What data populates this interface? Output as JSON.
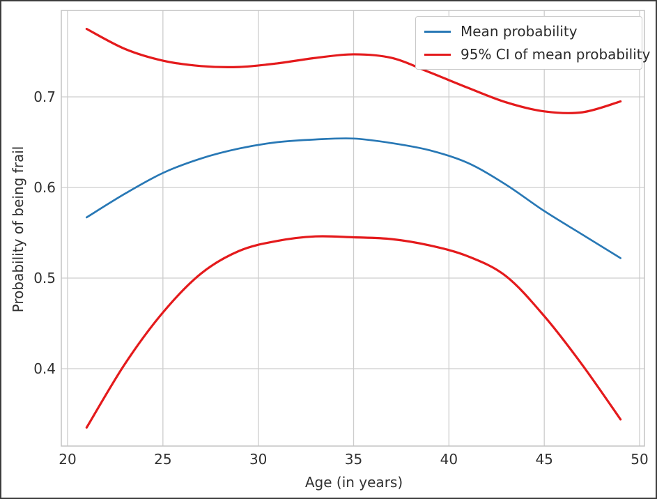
{
  "figure": {
    "background": "#ffffff",
    "border_color": "#3c3c3c",
    "grid_color": "#cdcdcd",
    "spine_color": "#c4c4c4",
    "text_color": "#303030"
  },
  "chart_data": {
    "type": "line",
    "title": "",
    "xlabel": "Age (in years)",
    "ylabel": "Probability of being frail",
    "xlim": [
      19.671,
      50.255
    ],
    "ylim": [
      0.3146,
      0.7954
    ],
    "grid": true,
    "x": [
      21,
      23,
      25,
      27,
      29,
      31,
      33,
      35,
      37,
      39,
      41,
      43,
      45,
      47,
      49
    ],
    "series": [
      {
        "name": "Mean probability",
        "color": "#2878b5",
        "line_width": 2.7,
        "values": [
          0.567,
          0.593,
          0.616,
          0.632,
          0.643,
          0.65,
          0.653,
          0.654,
          0.649,
          0.641,
          0.627,
          0.603,
          0.574,
          0.548,
          0.522
        ]
      },
      {
        "name": "95% CI of mean probability (upper)",
        "color": "#e41a1c",
        "line_width": 3.2,
        "values": [
          0.775,
          0.753,
          0.74,
          0.734,
          0.733,
          0.737,
          0.743,
          0.747,
          0.743,
          0.727,
          0.71,
          0.694,
          0.684,
          0.683,
          0.695
        ]
      },
      {
        "name": "95% CI of mean probability (lower)",
        "color": "#e41a1c",
        "line_width": 3.2,
        "values": [
          0.335,
          0.405,
          0.462,
          0.505,
          0.53,
          0.541,
          0.546,
          0.545,
          0.543,
          0.536,
          0.524,
          0.502,
          0.458,
          0.404,
          0.344
        ]
      }
    ],
    "xticks": [
      {
        "label": "20",
        "value": 20
      },
      {
        "label": "25",
        "value": 25
      },
      {
        "label": "30",
        "value": 30
      },
      {
        "label": "35",
        "value": 35
      },
      {
        "label": "40",
        "value": 40
      },
      {
        "label": "45",
        "value": 45
      },
      {
        "label": "50",
        "value": 50
      }
    ],
    "yticks": [
      {
        "label": "0.4",
        "value": 0.4
      },
      {
        "label": "0.5",
        "value": 0.5
      },
      {
        "label": "0.6",
        "value": 0.6
      },
      {
        "label": "0.7",
        "value": 0.7
      }
    ],
    "legend": {
      "position": "upper-right",
      "entries": [
        {
          "label": "Mean probability",
          "color": "#2878b5"
        },
        {
          "label": "95% CI of mean probability",
          "color": "#e41a1c"
        }
      ]
    }
  }
}
